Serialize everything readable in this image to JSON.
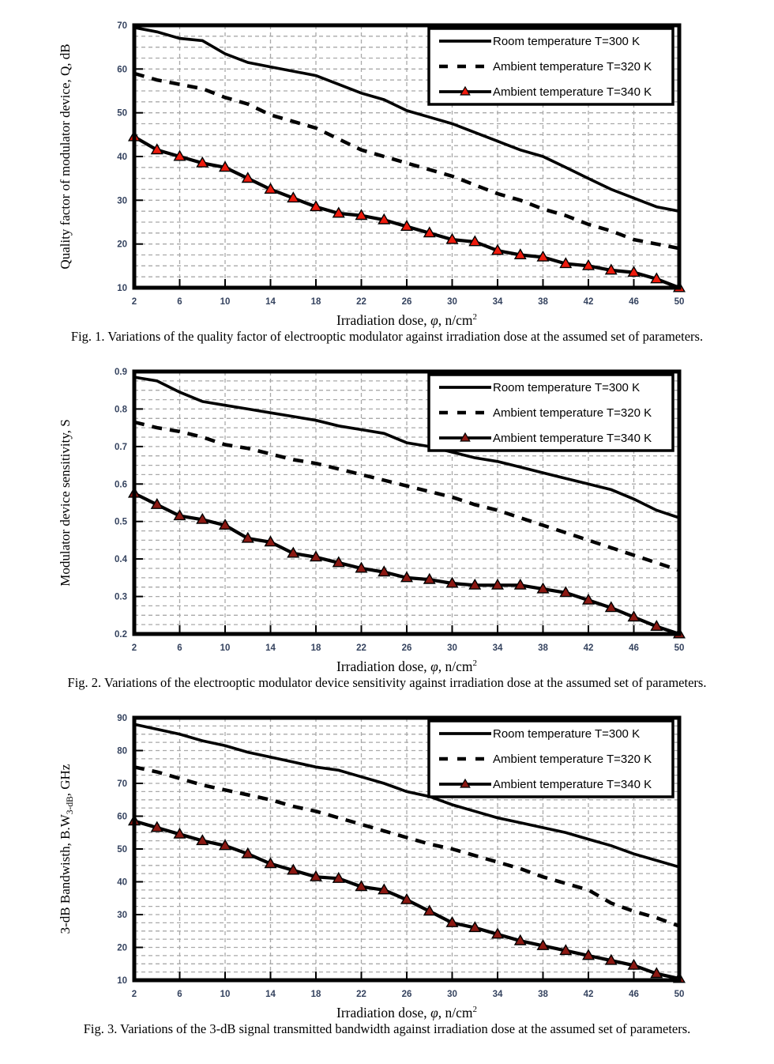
{
  "page": {
    "background": "#ffffff",
    "text_color": "#000000",
    "grid_color": "#a9a9a9",
    "tick_label_color": "#35435f"
  },
  "chart_data": [
    {
      "type": "line",
      "title": "",
      "caption": "Fig. 1. Variations of the quality factor of electrooptic modulator against irradiation dose at the assumed set of parameters.",
      "xlabel_pre1": "Irradiation dose, ",
      "xlabel_phi": "φ",
      "xlabel_pre2": ", n/cm",
      "xlabel_sup": "2",
      "ylabel_pre": "Quality factor of modulator device, Q, dB",
      "ylabel_sub": "",
      "ylabel_post": "",
      "xlim": [
        2,
        50
      ],
      "ylim": [
        10,
        70
      ],
      "xtick_labels": [
        "2",
        "6",
        "10",
        "14",
        "18",
        "22",
        "26",
        "30",
        "34",
        "38",
        "42",
        "46",
        "50"
      ],
      "ytick_labels": [
        "10",
        "20",
        "30",
        "40",
        "50",
        "60",
        "70"
      ],
      "minor_y_step": 2.5,
      "grid": true,
      "legend_position": "top-right",
      "x": [
        2,
        4,
        6,
        8,
        10,
        12,
        14,
        16,
        18,
        20,
        22,
        24,
        26,
        28,
        30,
        32,
        34,
        36,
        38,
        40,
        42,
        44,
        46,
        48,
        50
      ],
      "series": [
        {
          "name": "Room temperature T=300 K",
          "line": "solid",
          "marker": "none",
          "color": "#000000",
          "values": [
            69.5,
            68.5,
            67,
            66.5,
            63.5,
            61.5,
            60.5,
            59.5,
            58.5,
            56.5,
            54.5,
            53,
            50.5,
            49,
            47.5,
            45.5,
            43.5,
            41.5,
            40,
            37.5,
            35,
            32.5,
            30.5,
            28.5,
            27.5
          ]
        },
        {
          "name": "Ambient temperature T=320 K",
          "line": "dashed",
          "marker": "none",
          "color": "#000000",
          "values": [
            59,
            57.5,
            56.5,
            55.5,
            53.5,
            52,
            49.5,
            48,
            46.5,
            44,
            41.5,
            40,
            38.5,
            37,
            35.5,
            33.5,
            31.5,
            30,
            28,
            26.5,
            24.5,
            23,
            21,
            20,
            19
          ]
        },
        {
          "name": "Ambient temperature T=340 K",
          "line": "solid",
          "marker": "triangle",
          "color": "#000000",
          "marker_color": "#ee1b0d",
          "marker_edge": "#000000",
          "values": [
            44.5,
            41.5,
            40,
            38.5,
            37.5,
            35,
            32.5,
            30.5,
            28.5,
            27,
            26.5,
            25.5,
            24,
            22.5,
            21,
            20.5,
            18.5,
            17.5,
            17,
            15.5,
            15,
            14,
            13.5,
            12,
            10
          ]
        }
      ]
    },
    {
      "type": "line",
      "title": "",
      "caption": "Fig. 2. Variations of the electrooptic modulator device sensitivity against irradiation dose at the assumed set of parameters.",
      "xlabel_pre1": "Irradiation dose, ",
      "xlabel_phi": "φ",
      "xlabel_pre2": ", n/cm",
      "xlabel_sup": "2",
      "ylabel_pre": "Modulator device sensitivity, S",
      "ylabel_sub": "",
      "ylabel_post": "",
      "xlim": [
        2,
        50
      ],
      "ylim": [
        0.2,
        0.9
      ],
      "xtick_labels": [
        "2",
        "6",
        "10",
        "14",
        "18",
        "22",
        "26",
        "30",
        "34",
        "38",
        "42",
        "46",
        "50"
      ],
      "ytick_labels": [
        "0.2",
        "0.3",
        "0.4",
        "0.5",
        "0.6",
        "0.7",
        "0.8",
        "0.9"
      ],
      "minor_y_step": 0.025,
      "grid": true,
      "legend_position": "top-right",
      "x": [
        2,
        4,
        6,
        8,
        10,
        12,
        14,
        16,
        18,
        20,
        22,
        24,
        26,
        28,
        30,
        32,
        34,
        36,
        38,
        40,
        42,
        44,
        46,
        48,
        50
      ],
      "series": [
        {
          "name": "Room temperature T=300 K",
          "line": "solid",
          "marker": "none",
          "color": "#000000",
          "values": [
            0.885,
            0.875,
            0.845,
            0.82,
            0.81,
            0.8,
            0.79,
            0.78,
            0.77,
            0.755,
            0.745,
            0.735,
            0.71,
            0.7,
            0.685,
            0.67,
            0.66,
            0.645,
            0.63,
            0.615,
            0.6,
            0.585,
            0.56,
            0.53,
            0.51
          ]
        },
        {
          "name": "Ambient temperature T=320 K",
          "line": "dashed",
          "marker": "none",
          "color": "#000000",
          "values": [
            0.765,
            0.75,
            0.74,
            0.725,
            0.705,
            0.695,
            0.68,
            0.665,
            0.655,
            0.64,
            0.625,
            0.61,
            0.595,
            0.58,
            0.565,
            0.545,
            0.53,
            0.51,
            0.49,
            0.47,
            0.45,
            0.43,
            0.41,
            0.39,
            0.37
          ]
        },
        {
          "name": "Ambient temperature T=340 K",
          "line": "solid",
          "marker": "triangle",
          "color": "#000000",
          "marker_color": "#8b1812",
          "marker_edge": "#000000",
          "values": [
            0.575,
            0.545,
            0.515,
            0.505,
            0.49,
            0.455,
            0.445,
            0.415,
            0.405,
            0.39,
            0.375,
            0.365,
            0.35,
            0.345,
            0.335,
            0.33,
            0.33,
            0.33,
            0.32,
            0.31,
            0.29,
            0.27,
            0.245,
            0.22,
            0.2
          ]
        }
      ]
    },
    {
      "type": "line",
      "title": "",
      "caption": "Fig. 3. Variations of the 3-dB signal transmitted bandwidth against irradiation dose at the assumed set of parameters.",
      "xlabel_pre1": "Irradiation dose, ",
      "xlabel_phi": "φ",
      "xlabel_pre2": ", n/cm",
      "xlabel_sup": "2",
      "ylabel_pre": "3-dB Bandwisth, B.W",
      "ylabel_sub": "3-dB",
      "ylabel_post": ", GHz",
      "xlim": [
        2,
        50
      ],
      "ylim": [
        10,
        90
      ],
      "xtick_labels": [
        "2",
        "6",
        "10",
        "14",
        "18",
        "22",
        "26",
        "30",
        "34",
        "38",
        "42",
        "46",
        "50"
      ],
      "ytick_labels": [
        "10",
        "20",
        "30",
        "40",
        "50",
        "60",
        "70",
        "80",
        "90"
      ],
      "minor_y_step": 2.5,
      "grid": true,
      "legend_position": "top-right",
      "x": [
        2,
        4,
        6,
        8,
        10,
        12,
        14,
        16,
        18,
        20,
        22,
        24,
        26,
        28,
        30,
        32,
        34,
        36,
        38,
        40,
        42,
        44,
        46,
        48,
        50
      ],
      "series": [
        {
          "name": "Room temperature T=300 K",
          "line": "solid",
          "marker": "none",
          "color": "#000000",
          "values": [
            88,
            86.5,
            85,
            83,
            81.5,
            79.5,
            78,
            76.5,
            75,
            74,
            72,
            70,
            67.5,
            66,
            63.5,
            61.5,
            59.5,
            58,
            56.5,
            55,
            53,
            51,
            48.5,
            46.5,
            44.5
          ]
        },
        {
          "name": "Ambient temperature T=320 K",
          "line": "dashed",
          "marker": "none",
          "color": "#000000",
          "values": [
            75,
            73.5,
            71.5,
            69.5,
            68,
            66.5,
            65,
            63,
            61.5,
            59.5,
            57.5,
            55.5,
            53.5,
            51.5,
            50,
            48,
            46,
            44,
            41.5,
            39.5,
            37.5,
            33.5,
            31,
            29,
            26.5
          ]
        },
        {
          "name": "Ambient temperature T=340 K",
          "line": "solid",
          "marker": "triangle",
          "color": "#000000",
          "marker_color": "#8b1812",
          "marker_edge": "#000000",
          "values": [
            58.5,
            56.5,
            54.5,
            52.5,
            51,
            48.5,
            45.5,
            43.5,
            41.5,
            41,
            38.5,
            37.5,
            34.5,
            31,
            27.5,
            26,
            24,
            22,
            20.5,
            19,
            17.5,
            16,
            14.5,
            12,
            10.5
          ]
        }
      ]
    }
  ]
}
